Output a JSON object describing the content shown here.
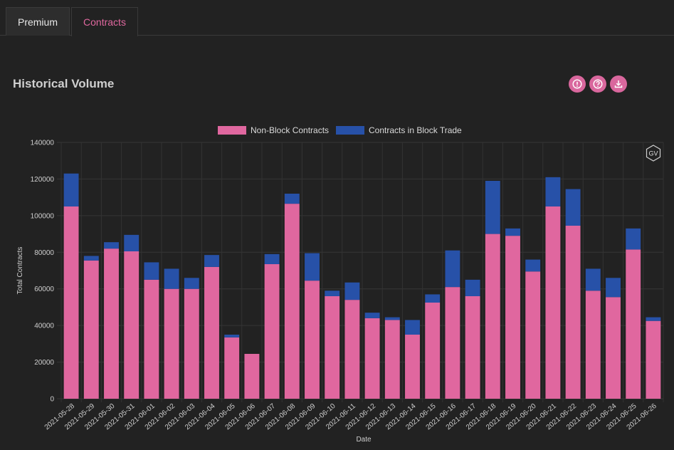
{
  "tabs": [
    {
      "label": "Premium",
      "active": false
    },
    {
      "label": "Contracts",
      "active": true
    }
  ],
  "section": {
    "title": "Historical Volume"
  },
  "toolbar": {
    "icons": [
      "info-icon",
      "help-icon",
      "download-icon"
    ],
    "accent_color": "#d9679d"
  },
  "watermark": {
    "text": "GV"
  },
  "chart_data": {
    "type": "bar",
    "stacked": true,
    "title": "",
    "xlabel": "Date",
    "ylabel": "Total Contracts",
    "ylim": [
      0,
      140000
    ],
    "yticks": [
      0,
      20000,
      40000,
      60000,
      80000,
      100000,
      120000,
      140000
    ],
    "grid": true,
    "legend_position": "top-center",
    "categories": [
      "2021-05-28",
      "2021-05-29",
      "2021-05-30",
      "2021-05-31",
      "2021-06-01",
      "2021-06-02",
      "2021-06-03",
      "2021-06-04",
      "2021-06-05",
      "2021-06-06",
      "2021-06-07",
      "2021-06-08",
      "2021-06-09",
      "2021-06-10",
      "2021-06-11",
      "2021-06-12",
      "2021-06-13",
      "2021-06-14",
      "2021-06-15",
      "2021-06-16",
      "2021-06-17",
      "2021-06-18",
      "2021-06-19",
      "2021-06-20",
      "2021-06-21",
      "2021-06-22",
      "2021-06-23",
      "2021-06-24",
      "2021-06-25",
      "2021-06-26"
    ],
    "series": [
      {
        "name": "Non-Block Contracts",
        "color": "#e0679f",
        "values": [
          105000,
          75500,
          82000,
          80500,
          65000,
          60000,
          60000,
          72000,
          33500,
          24500,
          73500,
          106500,
          64500,
          56000,
          54000,
          44000,
          43000,
          35000,
          52500,
          61000,
          56000,
          90000,
          89000,
          69500,
          105000,
          94500,
          59000,
          55500,
          81500,
          42500
        ]
      },
      {
        "name": "Contracts in Block Trade",
        "color": "#2751a8",
        "values": [
          18000,
          2500,
          3500,
          9000,
          9500,
          11000,
          6000,
          6500,
          1500,
          0,
          5500,
          5500,
          15000,
          3000,
          9500,
          3000,
          1500,
          8000,
          4500,
          20000,
          9000,
          29000,
          4000,
          6500,
          16000,
          20000,
          12000,
          10500,
          11500,
          2000
        ]
      }
    ]
  }
}
